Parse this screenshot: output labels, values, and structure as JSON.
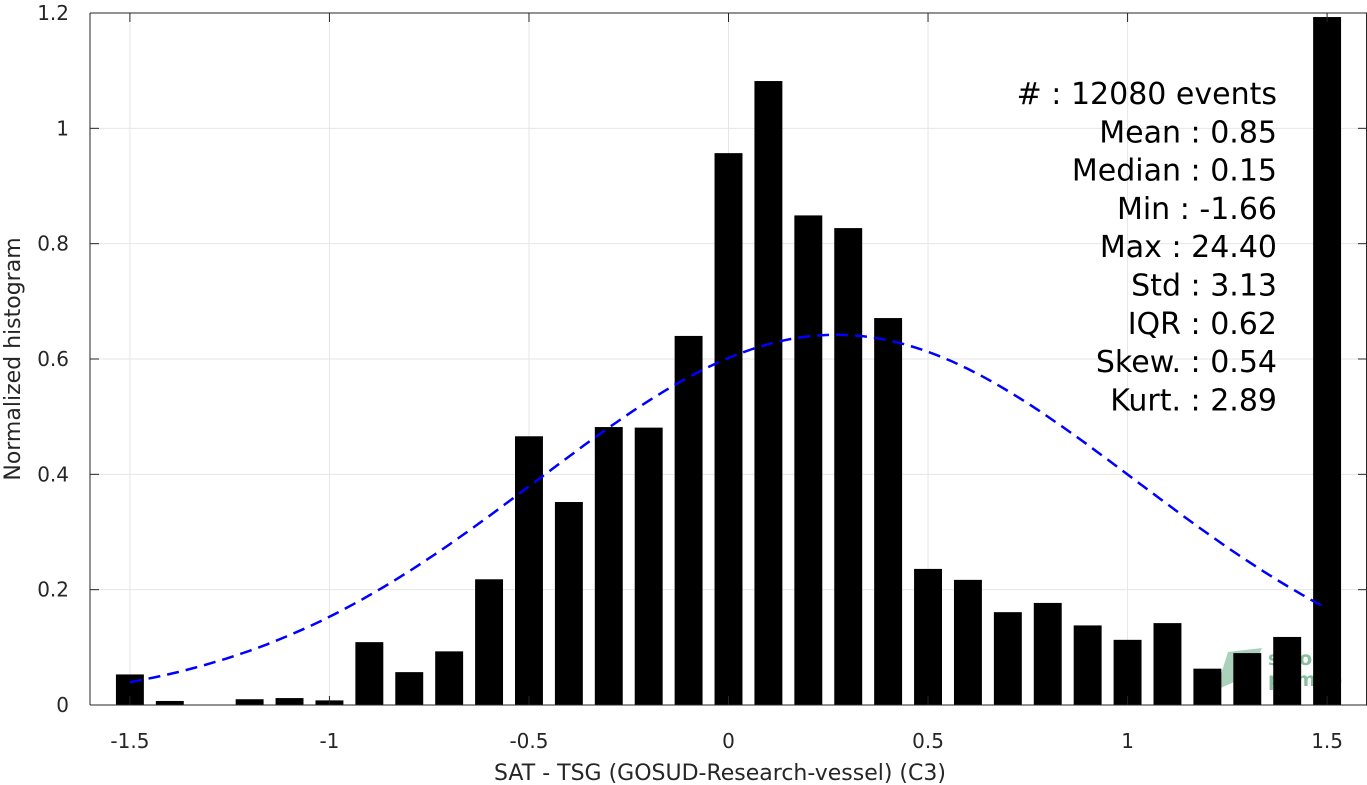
{
  "chart_data": {
    "type": "bar",
    "xlabel": "SAT - TSG (GOSUD-Research-vessel) (C3)",
    "ylabel": "Normalized histogram",
    "xlim": [
      -1.6,
      1.6
    ],
    "ylim": [
      0,
      1.2
    ],
    "xticks": [
      -1.5,
      -1,
      -0.5,
      0,
      0.5,
      1,
      1.5
    ],
    "xtick_labels": [
      "-1.5",
      "-1",
      "-0.5",
      "0",
      "0.5",
      "1",
      "1.5"
    ],
    "yticks": [
      0,
      0.2,
      0.4,
      0.6,
      0.8,
      1,
      1.2
    ],
    "ytick_labels": [
      "0",
      "0.2",
      "0.4",
      "0.6",
      "0.8",
      "1",
      "1.2"
    ],
    "grid": true,
    "bar_width": 0.07,
    "bar_color": "#000000",
    "bars": [
      {
        "x": -1.5,
        "y": 0.053
      },
      {
        "x": -1.4,
        "y": 0.007
      },
      {
        "x": -1.3,
        "y": 0.0
      },
      {
        "x": -1.2,
        "y": 0.01
      },
      {
        "x": -1.1,
        "y": 0.012
      },
      {
        "x": -1.0,
        "y": 0.008
      },
      {
        "x": -0.9,
        "y": 0.109
      },
      {
        "x": -0.8,
        "y": 0.057
      },
      {
        "x": -0.7,
        "y": 0.093
      },
      {
        "x": -0.6,
        "y": 0.218
      },
      {
        "x": -0.5,
        "y": 0.466
      },
      {
        "x": -0.4,
        "y": 0.352
      },
      {
        "x": -0.3,
        "y": 0.482
      },
      {
        "x": -0.2,
        "y": 0.481
      },
      {
        "x": -0.1,
        "y": 0.64
      },
      {
        "x": 0.0,
        "y": 0.957
      },
      {
        "x": 0.1,
        "y": 1.082
      },
      {
        "x": 0.2,
        "y": 0.849
      },
      {
        "x": 0.3,
        "y": 0.827
      },
      {
        "x": 0.4,
        "y": 0.671
      },
      {
        "x": 0.5,
        "y": 0.236
      },
      {
        "x": 0.6,
        "y": 0.217
      },
      {
        "x": 0.7,
        "y": 0.161
      },
      {
        "x": 0.8,
        "y": 0.177
      },
      {
        "x": 0.9,
        "y": 0.138
      },
      {
        "x": 1.0,
        "y": 0.113
      },
      {
        "x": 1.1,
        "y": 0.142
      },
      {
        "x": 1.2,
        "y": 0.063
      },
      {
        "x": 1.3,
        "y": 0.09
      },
      {
        "x": 1.4,
        "y": 0.118
      },
      {
        "x": 1.5,
        "y": 1.193
      }
    ],
    "fit_curve": {
      "style": "dashed",
      "color": "#0000ff",
      "x_range": [
        -1.5,
        1.5
      ],
      "peak_x": 0.27,
      "peak_y": 0.642,
      "sigma": 0.75
    },
    "stats": [
      "#  : 12080 events",
      "Mean : 0.85",
      "Median : 0.15",
      "Min : -1.66",
      "Max : 24.40",
      "Std : 3.13",
      "IQR : 0.62",
      "Skew. : 0.54",
      "Kurt. : 2.89"
    ]
  },
  "logo": {
    "line1": "smos",
    "line2": "pi-mep"
  }
}
